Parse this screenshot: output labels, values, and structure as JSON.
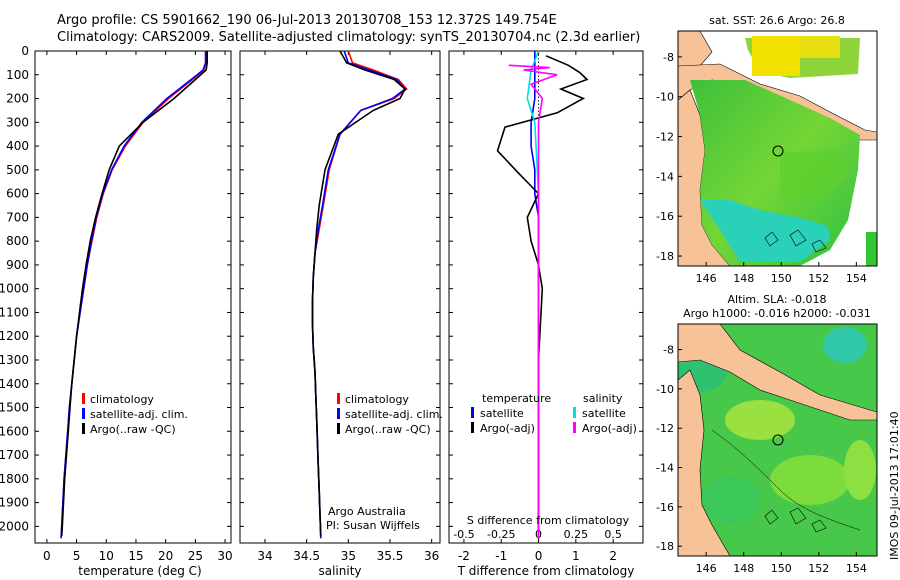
{
  "header": {
    "line1": "Argo profile: CS 5901662_190 06-Jul-2013 20130708_153 12.372S 149.754E",
    "line2": "Climatology: CARS2009. Satellite-adjusted climatology: synTS_20130704.nc (2.3d earlier)"
  },
  "colors": {
    "climatology": "#ff0000",
    "satellite": "#0000ff",
    "argo": "#000000",
    "salinity_sat": "#00e0e0",
    "salinity_argo": "#ff00ff",
    "land": "#f7c297"
  },
  "chart_data": [
    {
      "id": "temperature",
      "type": "line",
      "xlabel": "temperature (deg C)",
      "ylabel": "",
      "xlim": [
        -2,
        31
      ],
      "ylim": [
        2070,
        0
      ],
      "xticks": [
        0,
        5,
        10,
        15,
        20,
        25,
        30
      ],
      "yticks": [
        0,
        100,
        200,
        300,
        400,
        500,
        600,
        700,
        800,
        900,
        1000,
        1100,
        1200,
        1300,
        1400,
        1500,
        1600,
        1700,
        1800,
        1900,
        2000
      ],
      "legend": [
        "climatology",
        "satellite-adj. clim.",
        "Argo(..raw -QC)"
      ],
      "series": [
        {
          "name": "climatology",
          "color": "#ff0000",
          "x": [
            26.9,
            26.8,
            26.4,
            24.5,
            20.5,
            16.2,
            13.2,
            11.0,
            9.5,
            8.4,
            7.6,
            6.8,
            6.2,
            5.6,
            5.0,
            4.6,
            4.2,
            3.8,
            3.5,
            3.2,
            2.9,
            2.7,
            2.5,
            2.4
          ],
          "y": [
            0,
            50,
            80,
            120,
            200,
            300,
            400,
            500,
            600,
            700,
            800,
            900,
            1000,
            1100,
            1200,
            1300,
            1400,
            1500,
            1600,
            1700,
            1800,
            1900,
            2000,
            2050
          ]
        },
        {
          "name": "satellite-adj. clim.",
          "color": "#0000ff",
          "x": [
            26.7,
            26.7,
            26.3,
            24.3,
            20.2,
            16.0,
            13.0,
            10.9,
            9.4,
            8.3,
            7.5,
            6.8,
            6.2,
            5.6,
            5.0,
            4.6,
            4.2,
            3.8,
            3.5,
            3.2,
            2.9,
            2.7,
            2.5,
            2.4
          ],
          "y": [
            0,
            50,
            80,
            120,
            200,
            300,
            400,
            500,
            600,
            700,
            800,
            900,
            1000,
            1100,
            1200,
            1300,
            1400,
            1500,
            1600,
            1700,
            1800,
            1900,
            2000,
            2050
          ]
        },
        {
          "name": "Argo(..raw -QC)",
          "color": "#000000",
          "x": [
            27.0,
            27.0,
            26.8,
            25.0,
            21.4,
            16.2,
            12.2,
            10.5,
            9.3,
            8.2,
            7.3,
            6.6,
            6.0,
            5.5,
            5.0,
            4.6,
            4.2,
            3.9,
            3.6,
            3.3,
            3.0,
            2.8,
            2.6,
            2.5
          ],
          "y": [
            0,
            50,
            80,
            120,
            200,
            300,
            400,
            500,
            600,
            700,
            800,
            900,
            1000,
            1100,
            1200,
            1300,
            1400,
            1500,
            1600,
            1700,
            1800,
            1900,
            2000,
            2040
          ]
        }
      ]
    },
    {
      "id": "salinity",
      "type": "line",
      "xlabel": "salinity",
      "xlim": [
        33.7,
        36.1
      ],
      "ylim": [
        2070,
        0
      ],
      "xticks": [
        34,
        34.5,
        35,
        35.5,
        36
      ],
      "legend": [
        "climatology",
        "satellite-adj. clim.",
        "Argo(..raw -QC)"
      ],
      "annotation": [
        "Argo Australia",
        "PI: Susan Wijffels"
      ],
      "series": [
        {
          "name": "climatology",
          "color": "#ff0000",
          "x": [
            35.0,
            35.05,
            35.3,
            35.6,
            35.7,
            35.55,
            35.15,
            34.9,
            34.77,
            34.7,
            34.65,
            34.6,
            34.58,
            34.57,
            34.57,
            34.58,
            34.6,
            34.61,
            34.62,
            34.63,
            34.64,
            34.65,
            34.66,
            34.67
          ],
          "y": [
            0,
            50,
            80,
            120,
            160,
            200,
            250,
            350,
            500,
            650,
            750,
            850,
            950,
            1050,
            1150,
            1250,
            1350,
            1450,
            1550,
            1650,
            1750,
            1850,
            1950,
            2050
          ]
        },
        {
          "name": "satellite-adj. clim.",
          "color": "#0000ff",
          "x": [
            34.95,
            35.0,
            35.25,
            35.58,
            35.68,
            35.53,
            35.15,
            34.9,
            34.76,
            34.69,
            34.64,
            34.6,
            34.58,
            34.57,
            34.57,
            34.58,
            34.6,
            34.61,
            34.62,
            34.63,
            34.64,
            34.65,
            34.66,
            34.67
          ],
          "y": [
            0,
            50,
            80,
            120,
            160,
            200,
            250,
            350,
            500,
            650,
            750,
            850,
            950,
            1050,
            1150,
            1250,
            1350,
            1450,
            1550,
            1650,
            1750,
            1850,
            1950,
            2050
          ]
        },
        {
          "name": "Argo(..raw -QC)",
          "color": "#000000",
          "x": [
            34.9,
            34.98,
            35.2,
            35.55,
            35.68,
            35.62,
            35.3,
            34.88,
            34.72,
            34.65,
            34.62,
            34.6,
            34.58,
            34.57,
            34.57,
            34.58,
            34.6,
            34.61,
            34.62,
            34.63,
            34.64,
            34.65,
            34.66,
            34.67
          ],
          "y": [
            0,
            50,
            80,
            120,
            160,
            200,
            250,
            350,
            500,
            650,
            750,
            850,
            950,
            1050,
            1150,
            1250,
            1350,
            1450,
            1550,
            1650,
            1750,
            1850,
            1950,
            2040
          ]
        }
      ]
    },
    {
      "id": "difference",
      "type": "line",
      "xlabel": "T difference from climatology",
      "xlabel_top": "S difference from climatology",
      "xlim": [
        -2.4,
        2.8
      ],
      "ylim": [
        2070,
        0
      ],
      "xticks": [
        -2,
        -1,
        0,
        1,
        2
      ],
      "sticks_labels": [
        "-0.5",
        "-0.25",
        "0",
        "0.25",
        "0.5"
      ],
      "sticks": [
        -2,
        -1,
        0,
        1,
        2
      ],
      "legend_temperature": {
        "title": "temperature",
        "items": [
          "satellite",
          "Argo(-adj)"
        ]
      },
      "legend_salinity": {
        "title": "salinity",
        "items": [
          "satellite",
          "Argo(-adj)"
        ]
      },
      "series": [
        {
          "name": "temperature satellite",
          "color": "#0000ff",
          "x": [
            -0.1,
            -0.1,
            -0.1,
            -0.2,
            -0.2,
            -0.1,
            -0.1,
            0,
            0,
            0,
            0,
            0
          ],
          "y": [
            0,
            100,
            200,
            300,
            400,
            500,
            600,
            700,
            800,
            1200,
            1600,
            2050
          ]
        },
        {
          "name": "temperature Argo(-adj)",
          "color": "#000000",
          "x": [
            0.2,
            0.8,
            1.1,
            1.3,
            0.6,
            1.2,
            0.5,
            -0.9,
            -1.1,
            -0.5,
            0,
            -0.3,
            -0.2,
            0,
            0.1,
            0,
            0,
            0
          ],
          "y": [
            20,
            60,
            90,
            120,
            160,
            200,
            260,
            320,
            420,
            520,
            600,
            700,
            800,
            900,
            1000,
            1300,
            1700,
            2050
          ]
        },
        {
          "name": "salinity satellite",
          "color": "#00e0e0",
          "x": [
            0,
            -0.2,
            -0.3,
            -0.1,
            0,
            0,
            0,
            0
          ],
          "y": [
            0,
            80,
            200,
            300,
            600,
            1000,
            1500,
            2050
          ]
        },
        {
          "name": "salinity Argo(-adj)",
          "color": "#ff00ff",
          "x": [
            -0.8,
            0.3,
            -0.4,
            0.5,
            -0.2,
            0.1,
            0,
            0,
            0
          ],
          "y": [
            60,
            70,
            80,
            100,
            140,
            200,
            300,
            400,
            2050
          ]
        }
      ]
    },
    {
      "id": "sst_map",
      "type": "heatmap",
      "title": "sat. SST: 26.6  Argo: 26.8",
      "xlim": [
        144.5,
        155.1
      ],
      "ylim": [
        -18.5,
        -6.7
      ],
      "xticks": [
        146,
        148,
        150,
        152,
        154
      ],
      "yticks": [
        -8,
        -10,
        -12,
        -14,
        -16,
        -18
      ],
      "argo_position": [
        149.754,
        -12.372
      ]
    },
    {
      "id": "sla_map",
      "type": "heatmap",
      "title": "Altim. SLA: -0.018",
      "subtitle": "Argo h1000: -0.016  h2000: -0.031",
      "xlim": [
        144.5,
        155.1
      ],
      "ylim": [
        -18.5,
        -6.7
      ],
      "xticks": [
        146,
        148,
        150,
        152,
        154
      ],
      "yticks": [
        -8,
        -10,
        -12,
        -14,
        -16,
        -18
      ],
      "argo_position": [
        149.754,
        -12.372
      ]
    }
  ],
  "side_text": "IMOS 09-Jul-2013 17:01:40"
}
